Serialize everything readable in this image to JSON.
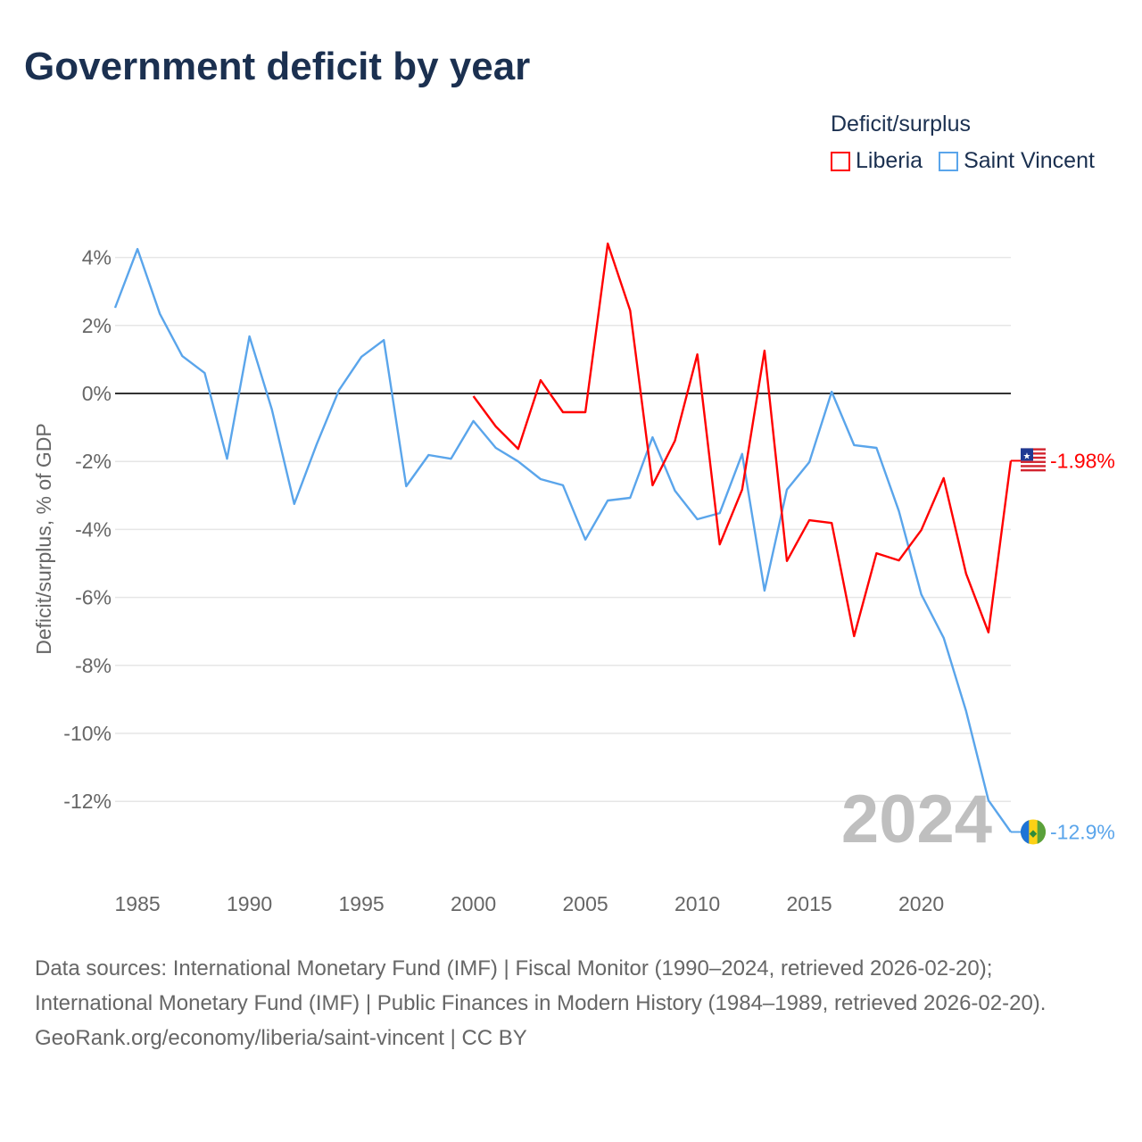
{
  "title": "Government deficit by year",
  "legend_title": "Deficit/surplus",
  "chart_data": {
    "type": "line",
    "title": "Government deficit by year",
    "xlabel": "",
    "ylabel": "Deficit/surplus, % of GDP",
    "xlim": [
      1984,
      2024
    ],
    "ylim": [
      -14,
      4.5
    ],
    "x_ticks": [
      1985,
      1990,
      1995,
      2000,
      2005,
      2010,
      2015,
      2020
    ],
    "y_ticks": [
      4,
      2,
      0,
      -2,
      -4,
      -6,
      -8,
      -10,
      -12
    ],
    "y_tick_labels": [
      "4%",
      "2%",
      "0%",
      "-2%",
      "-4%",
      "-6%",
      "-8%",
      "-10%",
      "-12%"
    ],
    "grid": true,
    "legend_position": "top-right",
    "year_watermark": "2024",
    "series": [
      {
        "name": "Liberia",
        "color": "#ff0000",
        "end_label": "-1.98%",
        "start_year": 2000,
        "values": [
          -0.08,
          -0.97,
          -1.63,
          0.39,
          -0.55,
          -0.55,
          4.41,
          2.44,
          -2.7,
          -1.39,
          1.15,
          -4.44,
          -2.83,
          1.26,
          -4.93,
          -3.73,
          -3.81,
          -7.14,
          -4.7,
          -4.91,
          -4.02,
          -2.49,
          -5.3,
          -7.03,
          -1.98
        ]
      },
      {
        "name": "Saint Vincent",
        "color": "#5aa5eb",
        "end_label": "-12.9%",
        "start_year": 1984,
        "values": [
          2.52,
          4.25,
          2.34,
          1.1,
          0.6,
          -1.92,
          1.68,
          -0.47,
          -3.25,
          -1.5,
          0.1,
          1.08,
          1.57,
          -2.73,
          -1.81,
          -1.92,
          -0.81,
          -1.6,
          -2.0,
          -2.52,
          -2.7,
          -4.3,
          -3.15,
          -3.07,
          -1.29,
          -2.86,
          -3.7,
          -3.52,
          -1.78,
          -5.8,
          -2.83,
          -2.02,
          0.05,
          -1.52,
          -1.6,
          -3.46,
          -5.91,
          -7.19,
          -9.34,
          -11.97,
          -12.9
        ]
      }
    ]
  },
  "footer": {
    "sources": "Data sources: International Monetary Fund (IMF) | Fiscal Monitor (1990–2024, retrieved 2026-02-20); International Monetary Fund (IMF) | Public Finances in Modern History (1984–1989, retrieved 2026-02-20).",
    "credit": "GeoRank.org/economy/liberia/saint-vincent | CC BY"
  }
}
